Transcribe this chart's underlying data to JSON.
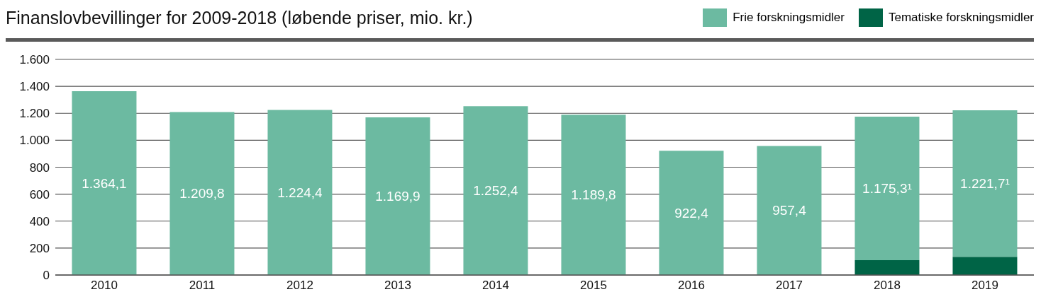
{
  "chart_data": {
    "type": "bar",
    "title": "Finanslovbevillinger for 2009-2018 (løbende priser, mio. kr.)",
    "categories": [
      "2010",
      "2011",
      "2012",
      "2013",
      "2014",
      "2015",
      "2016",
      "2017",
      "2018",
      "2019"
    ],
    "stacked": true,
    "series": [
      {
        "name": "Tematiske forskningsmidler",
        "color": "#006446",
        "values": [
          null,
          null,
          null,
          null,
          null,
          null,
          null,
          null,
          110,
          135
        ]
      },
      {
        "name": "Frie forskningsmidler",
        "color": "#6cbaa1",
        "values": [
          1364.1,
          1209.8,
          1224.4,
          1169.9,
          1252.4,
          1189.8,
          922.4,
          957.4,
          1065.3,
          1086.7
        ]
      }
    ],
    "totals": [
      "1.364,1",
      "1.209,8",
      "1.224,4",
      "1.169,9",
      "1.252,4",
      "1.189,8",
      "922,4",
      "957,4",
      "1.175,3¹",
      "1.221,7¹"
    ],
    "ylim": [
      0,
      1600
    ],
    "yticks": [
      {
        "value": 0,
        "label": "0"
      },
      {
        "value": 200,
        "label": "200"
      },
      {
        "value": 400,
        "label": "400"
      },
      {
        "value": 600,
        "label": "600"
      },
      {
        "value": 800,
        "label": "800"
      },
      {
        "value": 1000,
        "label": "1.000"
      },
      {
        "value": 1200,
        "label": "1.200"
      },
      {
        "value": 1400,
        "label": "1.400"
      },
      {
        "value": 1600,
        "label": "1.600"
      }
    ],
    "grid": "y",
    "legend": "top right"
  }
}
